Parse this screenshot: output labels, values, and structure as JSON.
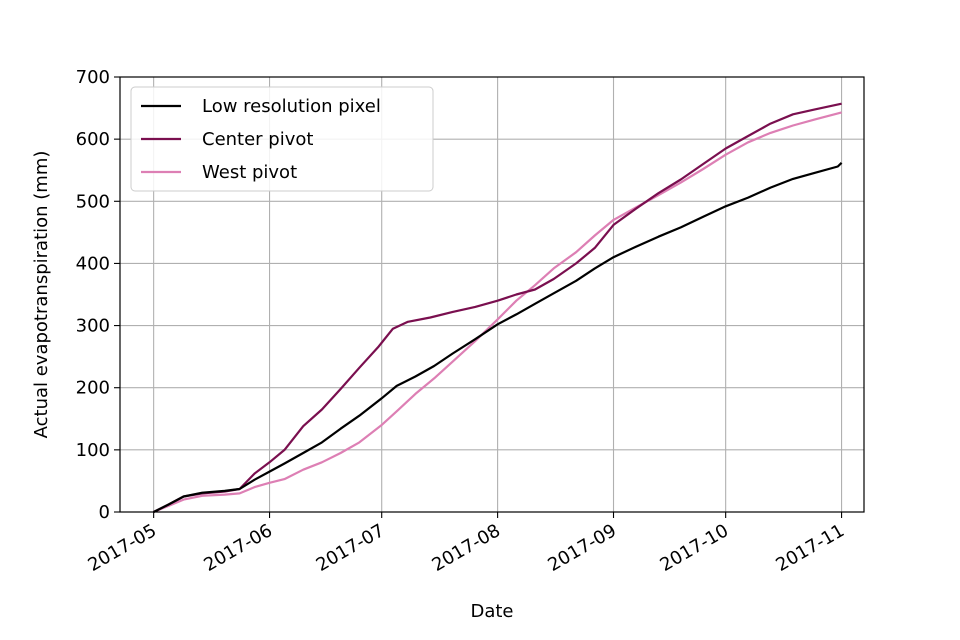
{
  "chart_data": {
    "type": "line",
    "title": "",
    "xlabel": "Date",
    "ylabel": "Actual evapotranspiration (mm)",
    "ylim": [
      0,
      700
    ],
    "xlim": [
      "2017-04-22",
      "2017-11-07"
    ],
    "grid": true,
    "legend_position": "top-left",
    "x_ticks": [
      "2017-05",
      "2017-06",
      "2017-07",
      "2017-08",
      "2017-09",
      "2017-10",
      "2017-11"
    ],
    "y_ticks": [
      0,
      100,
      200,
      300,
      400,
      500,
      600,
      700
    ],
    "series": [
      {
        "name": "Low resolution pixel",
        "color": "#000000",
        "points": [
          [
            "2017-05-01",
            0
          ],
          [
            "2017-05-05",
            12
          ],
          [
            "2017-05-09",
            25
          ],
          [
            "2017-05-14",
            31
          ],
          [
            "2017-05-20",
            34
          ],
          [
            "2017-05-24",
            37
          ],
          [
            "2017-05-28",
            52
          ],
          [
            "2017-06-01",
            65
          ],
          [
            "2017-06-05",
            78
          ],
          [
            "2017-06-10",
            95
          ],
          [
            "2017-06-15",
            112
          ],
          [
            "2017-06-20",
            134
          ],
          [
            "2017-06-25",
            155
          ],
          [
            "2017-07-01",
            183
          ],
          [
            "2017-07-05",
            203
          ],
          [
            "2017-07-10",
            218
          ],
          [
            "2017-07-15",
            235
          ],
          [
            "2017-07-20",
            255
          ],
          [
            "2017-07-26",
            278
          ],
          [
            "2017-08-01",
            302
          ],
          [
            "2017-08-06",
            318
          ],
          [
            "2017-08-11",
            335
          ],
          [
            "2017-08-16",
            352
          ],
          [
            "2017-08-22",
            372
          ],
          [
            "2017-08-27",
            392
          ],
          [
            "2017-09-01",
            410
          ],
          [
            "2017-09-07",
            427
          ],
          [
            "2017-09-13",
            443
          ],
          [
            "2017-09-19",
            458
          ],
          [
            "2017-09-25",
            475
          ],
          [
            "2017-10-01",
            492
          ],
          [
            "2017-10-07",
            506
          ],
          [
            "2017-10-13",
            522
          ],
          [
            "2017-10-19",
            536
          ],
          [
            "2017-10-25",
            546
          ],
          [
            "2017-10-31",
            556
          ],
          [
            "2017-11-01",
            562
          ]
        ]
      },
      {
        "name": "Center pivot",
        "color": "#7a0f4f",
        "points": [
          [
            "2017-05-01",
            0
          ],
          [
            "2017-05-05",
            12
          ],
          [
            "2017-05-09",
            25
          ],
          [
            "2017-05-14",
            30
          ],
          [
            "2017-05-20",
            33
          ],
          [
            "2017-05-24",
            37
          ],
          [
            "2017-05-28",
            62
          ],
          [
            "2017-06-01",
            80
          ],
          [
            "2017-06-05",
            100
          ],
          [
            "2017-06-10",
            138
          ],
          [
            "2017-06-15",
            165
          ],
          [
            "2017-06-20",
            198
          ],
          [
            "2017-06-25",
            232
          ],
          [
            "2017-06-30",
            265
          ],
          [
            "2017-07-04",
            295
          ],
          [
            "2017-07-08",
            306
          ],
          [
            "2017-07-14",
            313
          ],
          [
            "2017-07-20",
            322
          ],
          [
            "2017-07-26",
            330
          ],
          [
            "2017-08-01",
            340
          ],
          [
            "2017-08-06",
            350
          ],
          [
            "2017-08-11",
            358
          ],
          [
            "2017-08-16",
            375
          ],
          [
            "2017-08-22",
            400
          ],
          [
            "2017-08-27",
            425
          ],
          [
            "2017-09-01",
            462
          ],
          [
            "2017-09-07",
            488
          ],
          [
            "2017-09-13",
            513
          ],
          [
            "2017-09-19",
            535
          ],
          [
            "2017-09-25",
            560
          ],
          [
            "2017-10-01",
            585
          ],
          [
            "2017-10-07",
            605
          ],
          [
            "2017-10-13",
            625
          ],
          [
            "2017-10-19",
            640
          ],
          [
            "2017-10-25",
            648
          ],
          [
            "2017-11-01",
            657
          ]
        ]
      },
      {
        "name": "West pivot",
        "color": "#dd7fb4",
        "points": [
          [
            "2017-05-01",
            0
          ],
          [
            "2017-05-05",
            10
          ],
          [
            "2017-05-09",
            20
          ],
          [
            "2017-05-14",
            26
          ],
          [
            "2017-05-20",
            28
          ],
          [
            "2017-05-24",
            30
          ],
          [
            "2017-05-28",
            40
          ],
          [
            "2017-06-01",
            47
          ],
          [
            "2017-06-05",
            53
          ],
          [
            "2017-06-10",
            68
          ],
          [
            "2017-06-15",
            80
          ],
          [
            "2017-06-20",
            95
          ],
          [
            "2017-06-25",
            112
          ],
          [
            "2017-07-01",
            140
          ],
          [
            "2017-07-05",
            162
          ],
          [
            "2017-07-10",
            190
          ],
          [
            "2017-07-15",
            215
          ],
          [
            "2017-07-20",
            242
          ],
          [
            "2017-07-26",
            275
          ],
          [
            "2017-08-01",
            310
          ],
          [
            "2017-08-06",
            340
          ],
          [
            "2017-08-11",
            365
          ],
          [
            "2017-08-16",
            392
          ],
          [
            "2017-08-22",
            418
          ],
          [
            "2017-08-27",
            445
          ],
          [
            "2017-09-01",
            470
          ],
          [
            "2017-09-07",
            490
          ],
          [
            "2017-09-13",
            510
          ],
          [
            "2017-09-19",
            530
          ],
          [
            "2017-09-25",
            552
          ],
          [
            "2017-10-01",
            575
          ],
          [
            "2017-10-07",
            595
          ],
          [
            "2017-10-13",
            610
          ],
          [
            "2017-10-19",
            622
          ],
          [
            "2017-10-25",
            632
          ],
          [
            "2017-11-01",
            643
          ]
        ]
      }
    ]
  }
}
